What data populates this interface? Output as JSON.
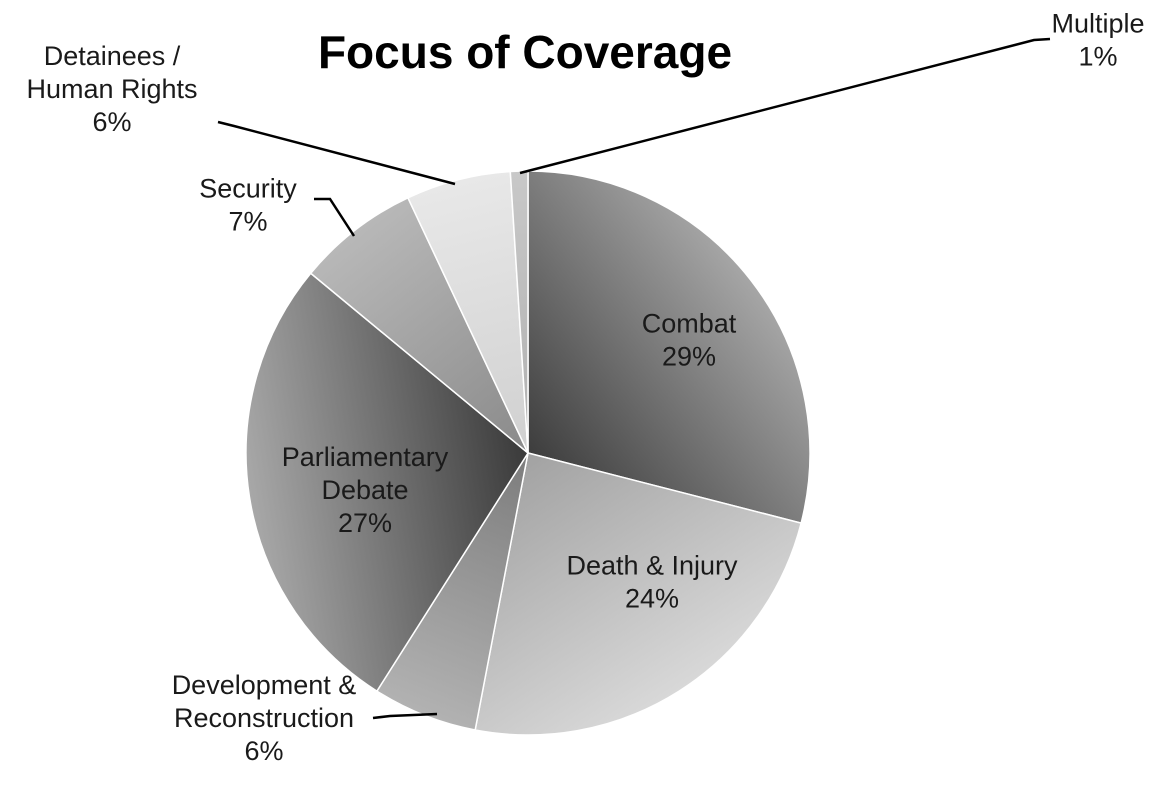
{
  "chart_data": {
    "type": "pie",
    "title": "Focus of Coverage",
    "start_angle_deg": 0,
    "direction": "clockwise",
    "slices": [
      {
        "name": "Combat",
        "value": 29,
        "label_lines": [
          "Combat",
          "29%"
        ],
        "label_placement": "inside",
        "color_light": "#a6a6a6",
        "color_dark": "#3d3d3d"
      },
      {
        "name": "Death & Injury",
        "value": 24,
        "label_lines": [
          "Death & Injury",
          "24%"
        ],
        "label_placement": "inside",
        "color_light": "#d8d8d8",
        "color_dark": "#a2a2a2"
      },
      {
        "name": "Development & Reconstruction",
        "value": 6,
        "label_lines": [
          "Development &",
          "Reconstruction",
          "6%"
        ],
        "label_placement": "outside-bottom-left",
        "color_light": "#b2b2b2",
        "color_dark": "#7c7c7c"
      },
      {
        "name": "Parliamentary Debate",
        "value": 27,
        "label_lines": [
          "Parliamentary",
          "Debate",
          "27%"
        ],
        "label_placement": "inside",
        "color_light": "#a8a8a8",
        "color_dark": "#3a3a3a"
      },
      {
        "name": "Security",
        "value": 7,
        "label_lines": [
          "Security",
          "7%"
        ],
        "label_placement": "outside-top-left",
        "color_light": "#b8b8b8",
        "color_dark": "#8a8a8a"
      },
      {
        "name": "Detainees / Human Rights",
        "value": 6,
        "label_lines": [
          "Detainees /",
          "Human Rights",
          "6%"
        ],
        "label_placement": "outside-top-left",
        "color_light": "#e8e8e8",
        "color_dark": "#d0d0d0"
      },
      {
        "name": "Multiple",
        "value": 1,
        "label_lines": [
          "Multiple",
          "1%"
        ],
        "label_placement": "outside-top-right",
        "color_light": "#c8c8c8",
        "color_dark": "#b0b0b0"
      }
    ]
  }
}
